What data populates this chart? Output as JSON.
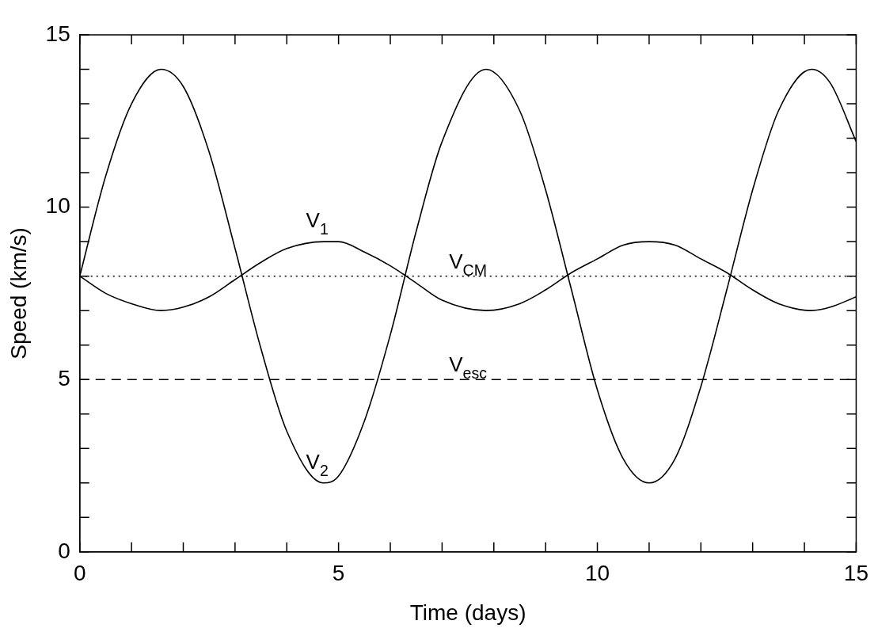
{
  "chart_data": {
    "type": "line",
    "xlabel": "Time (days)",
    "ylabel": "Speed (km/s)",
    "xlim": [
      0,
      15
    ],
    "ylim": [
      0,
      15
    ],
    "xticks": [
      0,
      {
        "value": 1,
        "label": null
      },
      {
        "value": 2,
        "label": null
      },
      {
        "value": 3,
        "label": null
      },
      {
        "value": 4,
        "label": null
      },
      5,
      {
        "value": 6,
        "label": null
      },
      {
        "value": 7,
        "label": null
      },
      {
        "value": 8,
        "label": null
      },
      {
        "value": 9,
        "label": null
      },
      10,
      {
        "value": 11,
        "label": null
      },
      {
        "value": 12,
        "label": null
      },
      {
        "value": 13,
        "label": null
      },
      {
        "value": 14,
        "label": null
      },
      15
    ],
    "yticks": [
      0,
      {
        "value": 1,
        "label": null
      },
      {
        "value": 2,
        "label": null
      },
      {
        "value": 3,
        "label": null
      },
      {
        "value": 4,
        "label": null
      },
      5,
      {
        "value": 6,
        "label": null
      },
      {
        "value": 7,
        "label": null
      },
      {
        "value": 8,
        "label": null
      },
      {
        "value": 9,
        "label": null
      },
      10,
      {
        "value": 11,
        "label": null
      },
      {
        "value": 12,
        "label": null
      },
      {
        "value": 13,
        "label": null
      },
      {
        "value": 14,
        "label": null
      },
      15
    ],
    "x": [
      0,
      0.5,
      1,
      1.57,
      2,
      2.5,
      3,
      3.5,
      4,
      4.71,
      5,
      5.5,
      6,
      6.5,
      7,
      7.85,
      8.5,
      9,
      9.5,
      10,
      10.5,
      11,
      11.5,
      12,
      12.5,
      13,
      13.5,
      14.14,
      14.5,
      15
    ],
    "series": [
      {
        "name": "V$_{2}$",
        "color": "#000000",
        "values": [
          8.0,
          10.9,
          13.0,
          14.0,
          13.5,
          11.6,
          8.8,
          5.9,
          3.5,
          2.0,
          2.2,
          3.8,
          6.3,
          9.3,
          11.9,
          14.0,
          12.8,
          10.5,
          7.6,
          4.7,
          2.7,
          2.0,
          2.7,
          4.8,
          7.6,
          10.5,
          12.8,
          14.0,
          13.6,
          11.9
        ]
      },
      {
        "name": "V$_{1}$",
        "color": "#000000",
        "values": [
          8.0,
          7.5,
          7.2,
          7.0,
          7.1,
          7.4,
          7.9,
          8.4,
          8.8,
          9.0,
          9.0,
          8.7,
          8.3,
          7.8,
          7.3,
          7.0,
          7.2,
          7.6,
          8.1,
          8.5,
          8.9,
          9.0,
          8.9,
          8.5,
          8.1,
          7.6,
          7.2,
          7.0,
          7.1,
          7.4
        ]
      }
    ],
    "ref_lines": [
      {
        "axis": "y",
        "value": 8,
        "label": "V$_{CM}$",
        "color": "#000000",
        "line_style": "dotted"
      },
      {
        "axis": "y",
        "value": 5,
        "label": "V$_{esc}$",
        "color": "#000000",
        "line_style": "dashed"
      }
    ],
    "line_style": "solid",
    "marker": "none"
  }
}
